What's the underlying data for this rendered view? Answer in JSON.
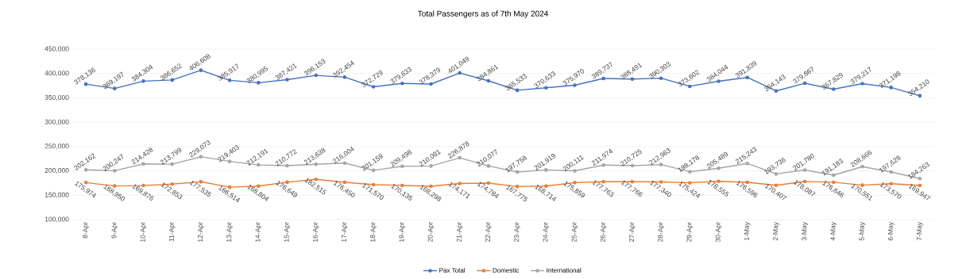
{
  "chart_data": {
    "type": "line",
    "title": "Total Passengers as of 7th May 2024",
    "categories": [
      "8-Apr",
      "9-Apr",
      "10-Apr",
      "11-Apr",
      "12-Apr",
      "13-Apr",
      "14-Apr",
      "15-Apr",
      "16-Apr",
      "17-Apr",
      "18-Apr",
      "19-Apr",
      "20-Apr",
      "21-Apr",
      "22-Apr",
      "23-Apr",
      "24-Apr",
      "25-Apr",
      "26-Apr",
      "27-Apr",
      "28-Apr",
      "29-Apr",
      "30-Apr",
      "1-May",
      "2-May",
      "3-May",
      "4-May",
      "5-May",
      "6-May",
      "7-May"
    ],
    "series": [
      {
        "name": "Pax Total",
        "color": "#4472c4",
        "values": [
          378136,
          369197,
          384304,
          386652,
          406608,
          385917,
          380995,
          387421,
          396153,
          392454,
          372729,
          379633,
          378379,
          401049,
          384861,
          365533,
          370633,
          375970,
          389737,
          388491,
          390303,
          373602,
          384044,
          391839,
          364143,
          379867,
          367829,
          379217,
          371198,
          354210
        ],
        "value_labels": [
          "378,136",
          "369,197",
          "384,304",
          "386,652",
          "406,608",
          "385,917",
          "380,995",
          "387,421",
          "396,153",
          "392,454",
          "372,729",
          "379,633",
          "378,379",
          "401,049",
          "384,861",
          "365,533",
          "370,633",
          "375,970",
          "389,737",
          "388,491",
          "390,303",
          "373,602",
          "384,044",
          "391,839",
          "364,143",
          "379,867",
          "367,829",
          "379,217",
          "371,198",
          "354,210"
        ]
      },
      {
        "name": "Domestic",
        "color": "#ed7d31",
        "values": [
          175974,
          168950,
          169876,
          172853,
          177535,
          166514,
          168804,
          176649,
          182515,
          176450,
          171570,
          170135,
          168298,
          174171,
          174784,
          167775,
          168714,
          175859,
          177763,
          177766,
          177340,
          175424,
          178555,
          176596,
          170407,
          178087,
          176646,
          170551,
          173570,
          169947
        ],
        "value_labels": [
          "175,974",
          "168,950",
          "169,876",
          "172,853",
          "177,535",
          "166,514",
          "168,804",
          "176,649",
          "182,515",
          "176,450",
          "171,570",
          "170,135",
          "168,298",
          "174,171",
          "174,784",
          "167,775",
          "168,714",
          "175,859",
          "177,763",
          "177,766",
          "177,340",
          "175,424",
          "178,555",
          "176,596",
          "170,407",
          "178,087",
          "176,646",
          "170,551",
          "173,570",
          "169,947"
        ]
      },
      {
        "name": "International",
        "color": "#a5a5a5",
        "values": [
          202162,
          200247,
          214428,
          213799,
          229073,
          219403,
          212191,
          210772,
          213638,
          216004,
          201159,
          209498,
          210081,
          226878,
          210077,
          197758,
          201919,
          200111,
          211974,
          210725,
          212963,
          198178,
          205489,
          215243,
          193736,
          201780,
          191183,
          208666,
          197628,
          184263
        ],
        "value_labels": [
          "202,162",
          "200,247",
          "214,428",
          "213,799",
          "229,073",
          "219,403",
          "212,191",
          "210,772",
          "213,638",
          "216,004",
          "201,159",
          "209,498",
          "210,081",
          "226,878",
          "210,077",
          "197,758",
          "201,919",
          "200,111",
          "211,974",
          "210,725",
          "212,963",
          "198,178",
          "205,489",
          "215,243",
          "193,736",
          "201,780",
          "191,183",
          "208,666",
          "197,628",
          "184,263"
        ]
      }
    ],
    "ylim": [
      100000,
      450000
    ],
    "yticks": [
      {
        "value": 100000,
        "label": "100,000"
      },
      {
        "value": 150000,
        "label": "150,000"
      },
      {
        "value": 200000,
        "label": "200,000"
      },
      {
        "value": 250000,
        "label": "250,000"
      },
      {
        "value": 300000,
        "label": "300,000"
      },
      {
        "value": 350000,
        "label": "350,000"
      },
      {
        "value": 400000,
        "label": "400,000"
      },
      {
        "value": 450000,
        "label": "450,000"
      }
    ],
    "grid": "y",
    "legend": "bottom",
    "marker": "circle",
    "line_style": "solid"
  }
}
